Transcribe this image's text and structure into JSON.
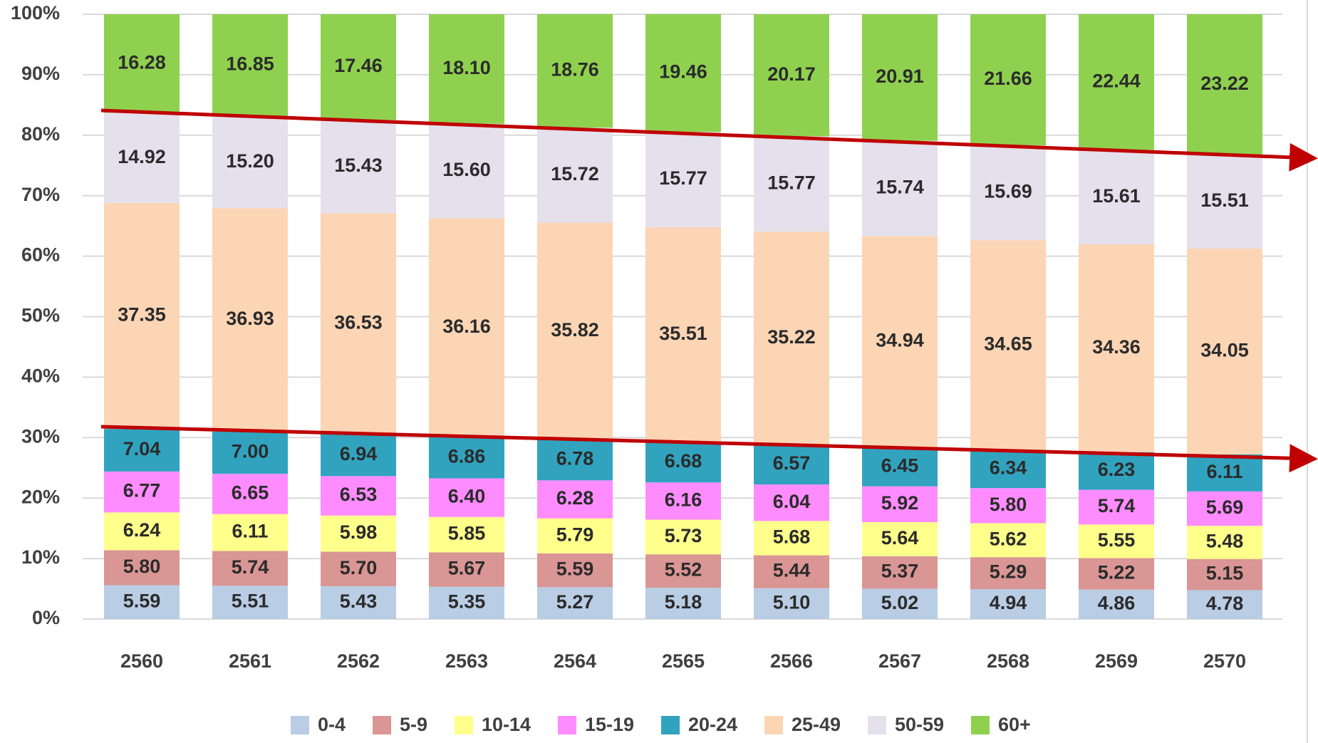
{
  "chart_data": {
    "type": "stacked_bar",
    "categories": [
      "2560",
      "2561",
      "2562",
      "2563",
      "2564",
      "2565",
      "2566",
      "2567",
      "2568",
      "2569",
      "2570"
    ],
    "series": [
      {
        "name": "0-4",
        "color": "#b9cde5",
        "values": [
          5.59,
          5.51,
          5.43,
          5.35,
          5.27,
          5.18,
          5.1,
          5.02,
          4.94,
          4.86,
          4.78
        ],
        "value_labels": [
          "5.59",
          "5.51",
          "5.43",
          "5.35",
          "5.27",
          "5.18",
          "5.10",
          "5.02",
          "4.94",
          "4.86",
          "4.78"
        ]
      },
      {
        "name": "5-9",
        "color": "#d99694",
        "values": [
          5.8,
          5.74,
          5.7,
          5.67,
          5.59,
          5.52,
          5.44,
          5.37,
          5.29,
          5.22,
          5.15
        ],
        "value_labels": [
          "5.80",
          "5.74",
          "5.70",
          "5.67",
          "5.59",
          "5.52",
          "5.44",
          "5.37",
          "5.29",
          "5.22",
          "5.15"
        ]
      },
      {
        "name": "10-14",
        "color": "#ffff8c",
        "values": [
          6.24,
          6.11,
          5.98,
          5.85,
          5.79,
          5.73,
          5.68,
          5.64,
          5.62,
          5.55,
          5.48
        ],
        "value_labels": [
          "6.24",
          "6.11",
          "5.98",
          "5.85",
          "5.79",
          "5.73",
          "5.68",
          "5.64",
          "5.62",
          "5.55",
          "5.48"
        ]
      },
      {
        "name": "15-19",
        "color": "#ff8cff",
        "values": [
          6.77,
          6.65,
          6.53,
          6.4,
          6.28,
          6.16,
          6.04,
          5.92,
          5.8,
          5.74,
          5.69
        ],
        "value_labels": [
          "6.77",
          "6.65",
          "6.53",
          "6.40",
          "6.28",
          "6.16",
          "6.04",
          "5.92",
          "5.80",
          "5.74",
          "5.69"
        ]
      },
      {
        "name": "20-24",
        "color": "#31a3bf",
        "values": [
          7.04,
          7.0,
          6.94,
          6.86,
          6.78,
          6.68,
          6.57,
          6.45,
          6.34,
          6.23,
          6.11
        ],
        "value_labels": [
          "7.04",
          "7.00",
          "6.94",
          "6.86",
          "6.78",
          "6.68",
          "6.57",
          "6.45",
          "6.34",
          "6.23",
          "6.11"
        ]
      },
      {
        "name": "25-49",
        "color": "#fcd5b5",
        "values": [
          37.35,
          36.93,
          36.53,
          36.16,
          35.82,
          35.51,
          35.22,
          34.94,
          34.65,
          34.36,
          34.05
        ],
        "value_labels": [
          "37.35",
          "36.93",
          "36.53",
          "36.16",
          "35.82",
          "35.51",
          "35.22",
          "34.94",
          "34.65",
          "34.36",
          "34.05"
        ]
      },
      {
        "name": "50-59",
        "color": "#e4e0ec",
        "values": [
          14.92,
          15.2,
          15.43,
          15.6,
          15.72,
          15.77,
          15.77,
          15.74,
          15.69,
          15.61,
          15.51
        ],
        "value_labels": [
          "14.92",
          "15.20",
          "15.43",
          "15.60",
          "15.72",
          "15.77",
          "15.77",
          "15.74",
          "15.69",
          "15.61",
          "15.51"
        ]
      },
      {
        "name": "60+",
        "color": "#8fd14f",
        "values": [
          16.28,
          16.85,
          17.46,
          18.1,
          18.76,
          19.46,
          20.17,
          20.91,
          21.66,
          22.44,
          23.22
        ],
        "value_labels": [
          "16.28",
          "16.85",
          "17.46",
          "18.10",
          "18.76",
          "19.46",
          "20.17",
          "20.91",
          "21.66",
          "22.44",
          "23.22"
        ]
      }
    ],
    "ylim": [
      0,
      100
    ],
    "yticks": [
      {
        "value": 0,
        "label": "0%"
      },
      {
        "value": 10,
        "label": "10%"
      },
      {
        "value": 20,
        "label": "20%"
      },
      {
        "value": 30,
        "label": "30%"
      },
      {
        "value": 40,
        "label": "40%"
      },
      {
        "value": 50,
        "label": "50%"
      },
      {
        "value": 60,
        "label": "60%"
      },
      {
        "value": 70,
        "label": "70%"
      },
      {
        "value": 80,
        "label": "80%"
      },
      {
        "value": 90,
        "label": "90%"
      },
      {
        "value": 100,
        "label": "100%"
      }
    ],
    "grid": true,
    "legend": "bottom"
  }
}
